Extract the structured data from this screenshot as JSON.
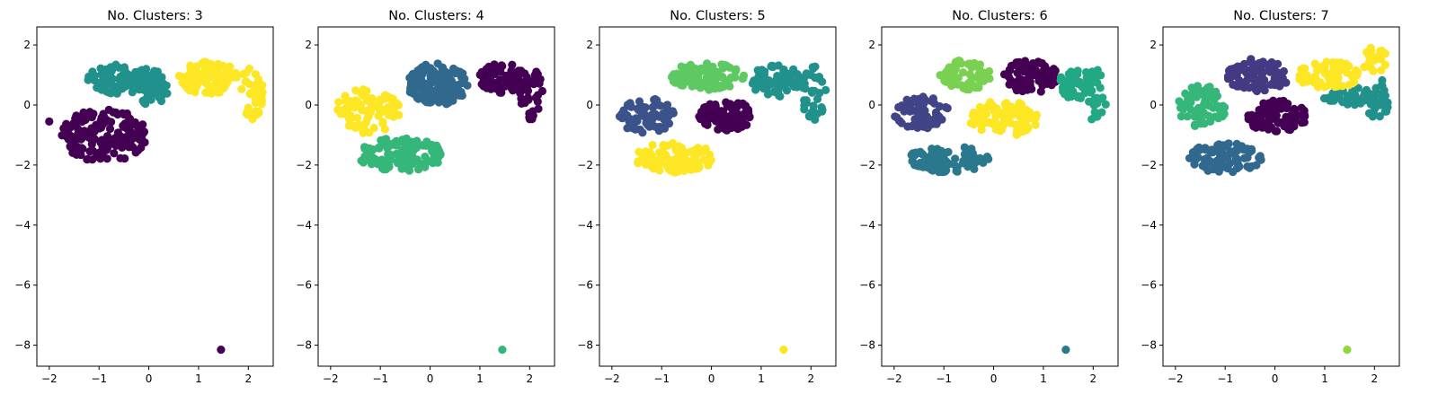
{
  "figure": {
    "background": "#ffffff"
  },
  "chart_data": [
    {
      "type": "scatter",
      "title": "No. Clusters: 3",
      "xlim": [
        -2.25,
        2.5
      ],
      "ylim": [
        -8.7,
        2.6
      ],
      "xticks": [
        -2,
        -1,
        0,
        1,
        2
      ],
      "yticks": [
        2,
        0,
        -2,
        -4,
        -6,
        -8
      ],
      "grid": false,
      "clusters": [
        {
          "color": "#440154",
          "blobs": [
            {
              "cx": -0.9,
              "cy": -1.0,
              "rx": 0.85,
              "ry": 0.9,
              "n": 160
            }
          ],
          "points": [
            [
              1.45,
              -8.15
            ],
            [
              -2.0,
              -0.55
            ]
          ]
        },
        {
          "color": "#21918c",
          "blobs": [
            {
              "cx": -0.55,
              "cy": 0.85,
              "rx": 0.7,
              "ry": 0.5,
              "n": 90
            },
            {
              "cx": 0.05,
              "cy": 0.6,
              "rx": 0.35,
              "ry": 0.6,
              "n": 60
            }
          ],
          "points": []
        },
        {
          "color": "#fde725",
          "blobs": [
            {
              "cx": 1.2,
              "cy": 0.9,
              "rx": 0.6,
              "ry": 0.55,
              "n": 100
            },
            {
              "cx": 2.05,
              "cy": 0.4,
              "rx": 0.25,
              "ry": 0.9,
              "n": 40
            }
          ],
          "points": []
        }
      ]
    },
    {
      "type": "scatter",
      "title": "No. Clusters: 4",
      "xlim": [
        -2.25,
        2.5
      ],
      "ylim": [
        -8.7,
        2.6
      ],
      "xticks": [
        -2,
        -1,
        0,
        1,
        2
      ],
      "yticks": [
        2,
        0,
        -2,
        -4,
        -6,
        -8
      ],
      "grid": false,
      "clusters": [
        {
          "color": "#440154",
          "blobs": [
            {
              "cx": 1.45,
              "cy": 0.9,
              "rx": 0.5,
              "ry": 0.5,
              "n": 70
            },
            {
              "cx": 2.05,
              "cy": 0.4,
              "rx": 0.25,
              "ry": 0.9,
              "n": 35
            }
          ],
          "points": []
        },
        {
          "color": "#31688e",
          "blobs": [
            {
              "cx": 0.15,
              "cy": 0.7,
              "rx": 0.6,
              "ry": 0.7,
              "n": 130
            }
          ],
          "points": []
        },
        {
          "color": "#35b779",
          "blobs": [
            {
              "cx": -0.6,
              "cy": -1.65,
              "rx": 0.9,
              "ry": 0.55,
              "n": 110
            }
          ],
          "points": [
            [
              1.45,
              -8.15
            ]
          ]
        },
        {
          "color": "#fde725",
          "blobs": [
            {
              "cx": -1.25,
              "cy": -0.2,
              "rx": 0.65,
              "ry": 0.75,
              "n": 90
            }
          ],
          "points": []
        }
      ]
    },
    {
      "type": "scatter",
      "title": "No. Clusters: 5",
      "xlim": [
        -2.25,
        2.5
      ],
      "ylim": [
        -8.7,
        2.6
      ],
      "xticks": [
        -2,
        -1,
        0,
        1,
        2
      ],
      "yticks": [
        2,
        0,
        -2,
        -4,
        -6,
        -8
      ],
      "grid": false,
      "clusters": [
        {
          "color": "#440154",
          "blobs": [
            {
              "cx": 0.3,
              "cy": -0.35,
              "rx": 0.55,
              "ry": 0.5,
              "n": 90
            }
          ],
          "points": []
        },
        {
          "color": "#3b528b",
          "blobs": [
            {
              "cx": -1.3,
              "cy": -0.35,
              "rx": 0.55,
              "ry": 0.6,
              "n": 80
            }
          ],
          "points": []
        },
        {
          "color": "#21918c",
          "blobs": [
            {
              "cx": 1.3,
              "cy": 0.8,
              "rx": 0.5,
              "ry": 0.55,
              "n": 70
            },
            {
              "cx": 2.05,
              "cy": 0.4,
              "rx": 0.25,
              "ry": 0.9,
              "n": 35
            }
          ],
          "points": []
        },
        {
          "color": "#5ec962",
          "blobs": [
            {
              "cx": -0.1,
              "cy": 0.95,
              "rx": 0.75,
              "ry": 0.45,
              "n": 100
            }
          ],
          "points": []
        },
        {
          "color": "#fde725",
          "blobs": [
            {
              "cx": -0.75,
              "cy": -1.75,
              "rx": 0.8,
              "ry": 0.5,
              "n": 100
            }
          ],
          "points": [
            [
              1.45,
              -8.15
            ]
          ]
        }
      ]
    },
    {
      "type": "scatter",
      "title": "No. Clusters: 6",
      "xlim": [
        -2.25,
        2.5
      ],
      "ylim": [
        -8.7,
        2.6
      ],
      "xticks": [
        -2,
        -1,
        0,
        1,
        2
      ],
      "yticks": [
        2,
        0,
        -2,
        -4,
        -6,
        -8
      ],
      "grid": false,
      "clusters": [
        {
          "color": "#440154",
          "blobs": [
            {
              "cx": 0.75,
              "cy": 0.95,
              "rx": 0.55,
              "ry": 0.55,
              "n": 90
            }
          ],
          "points": []
        },
        {
          "color": "#414487",
          "blobs": [
            {
              "cx": -1.45,
              "cy": -0.25,
              "rx": 0.55,
              "ry": 0.55,
              "n": 70
            }
          ],
          "points": []
        },
        {
          "color": "#2a788e",
          "blobs": [
            {
              "cx": -0.9,
              "cy": -1.8,
              "rx": 0.8,
              "ry": 0.45,
              "n": 90
            }
          ],
          "points": [
            [
              1.45,
              -8.15
            ]
          ]
        },
        {
          "color": "#22a884",
          "blobs": [
            {
              "cx": 1.65,
              "cy": 0.7,
              "rx": 0.35,
              "ry": 0.5,
              "n": 45
            },
            {
              "cx": 2.05,
              "cy": 0.3,
              "rx": 0.25,
              "ry": 0.9,
              "n": 30
            }
          ],
          "points": []
        },
        {
          "color": "#7ad151",
          "blobs": [
            {
              "cx": -0.55,
              "cy": 1.0,
              "rx": 0.55,
              "ry": 0.5,
              "n": 60
            }
          ],
          "points": []
        },
        {
          "color": "#fde725",
          "blobs": [
            {
              "cx": 0.2,
              "cy": -0.45,
              "rx": 0.7,
              "ry": 0.6,
              "n": 100
            }
          ],
          "points": []
        }
      ]
    },
    {
      "type": "scatter",
      "title": "No. Clusters: 7",
      "xlim": [
        -2.25,
        2.5
      ],
      "ylim": [
        -8.7,
        2.6
      ],
      "xticks": [
        -2,
        -1,
        0,
        1,
        2
      ],
      "yticks": [
        2,
        0,
        -2,
        -4,
        -6,
        -8
      ],
      "grid": false,
      "clusters": [
        {
          "color": "#440154",
          "blobs": [
            {
              "cx": 0.05,
              "cy": -0.4,
              "rx": 0.6,
              "ry": 0.55,
              "n": 90
            }
          ],
          "points": []
        },
        {
          "color": "#443983",
          "blobs": [
            {
              "cx": -0.35,
              "cy": 1.0,
              "rx": 0.65,
              "ry": 0.55,
              "n": 90
            }
          ],
          "points": []
        },
        {
          "color": "#31688e",
          "blobs": [
            {
              "cx": -1.0,
              "cy": -1.75,
              "rx": 0.75,
              "ry": 0.5,
              "n": 90
            }
          ],
          "points": []
        },
        {
          "color": "#21918c",
          "blobs": [
            {
              "cx": 1.45,
              "cy": 0.3,
              "rx": 0.5,
              "ry": 0.35,
              "n": 40
            },
            {
              "cx": 2.05,
              "cy": 0.1,
              "rx": 0.25,
              "ry": 0.8,
              "n": 30
            }
          ],
          "points": []
        },
        {
          "color": "#35b779",
          "blobs": [
            {
              "cx": -1.45,
              "cy": -0.05,
              "rx": 0.5,
              "ry": 0.7,
              "n": 70
            }
          ],
          "points": []
        },
        {
          "color": "#90d743",
          "blobs": [],
          "points": [
            [
              1.45,
              -8.15
            ]
          ]
        },
        {
          "color": "#fde725",
          "blobs": [
            {
              "cx": 1.1,
              "cy": 1.0,
              "rx": 0.65,
              "ry": 0.45,
              "n": 80
            },
            {
              "cx": 2.0,
              "cy": 1.5,
              "rx": 0.25,
              "ry": 0.45,
              "n": 25
            }
          ],
          "points": []
        }
      ]
    }
  ]
}
